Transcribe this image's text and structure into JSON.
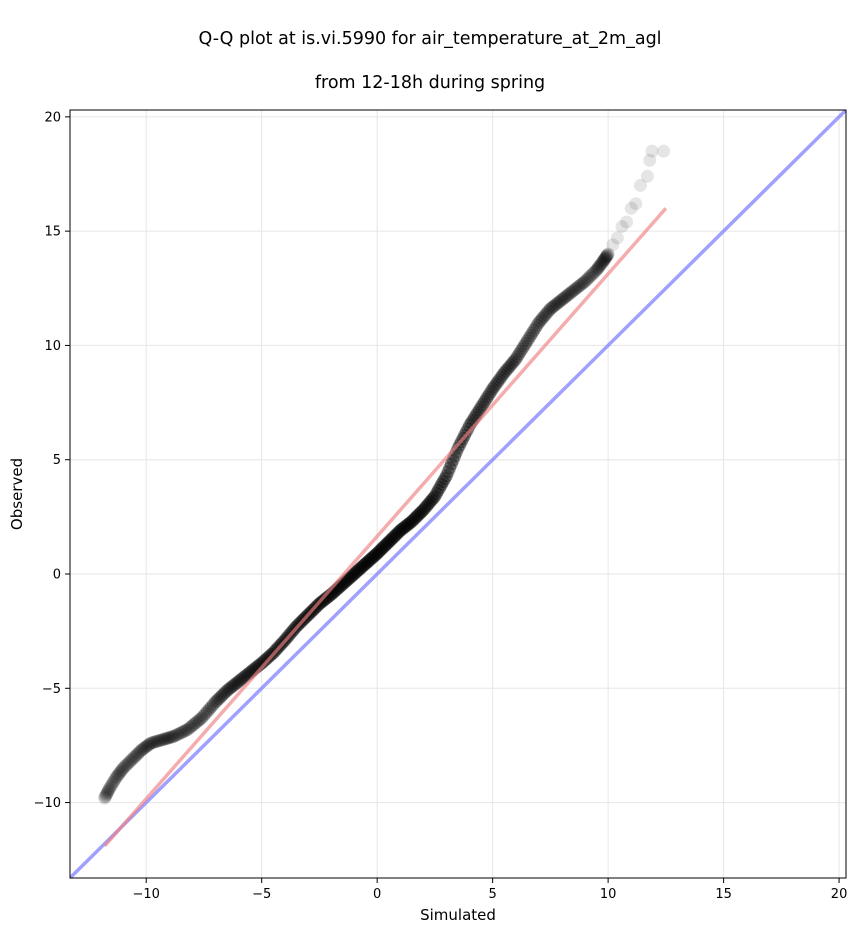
{
  "title_line1": "Q-Q plot at is.vi.5990 for air_temperature_at_2m_agl",
  "title_line2": "from 12-18h during spring",
  "chart_data": {
    "type": "scatter",
    "title": "Q-Q plot at is.vi.5990 for air_temperature_at_2m_agl\nfrom 12-18h during spring",
    "xlabel": "Simulated",
    "ylabel": "Observed",
    "xlim": [
      -13.3,
      20.3
    ],
    "ylim": [
      -13.3,
      20.3
    ],
    "xticks": [
      -10,
      -5,
      0,
      5,
      10,
      15,
      20
    ],
    "yticks": [
      -10,
      -5,
      0,
      5,
      10,
      15,
      20
    ],
    "xtick_labels": [
      "−10",
      "−5",
      "0",
      "5",
      "10",
      "15",
      "20"
    ],
    "ytick_labels": [
      "−10",
      "−5",
      "0",
      "5",
      "10",
      "15",
      "20"
    ],
    "grid": true,
    "colors": {
      "points": "#000000",
      "fit_line": "#f08080",
      "identity_line": "#8080ff",
      "grid": "#e6e6e6"
    },
    "quantile_curve": [
      {
        "x": -11.8,
        "y": -9.8
      },
      {
        "x": -11.6,
        "y": -9.4
      },
      {
        "x": -11.3,
        "y": -8.9
      },
      {
        "x": -11.0,
        "y": -8.5
      },
      {
        "x": -10.6,
        "y": -8.1
      },
      {
        "x": -10.2,
        "y": -7.7
      },
      {
        "x": -9.8,
        "y": -7.4
      },
      {
        "x": -9.3,
        "y": -7.25
      },
      {
        "x": -8.8,
        "y": -7.1
      },
      {
        "x": -8.2,
        "y": -6.8
      },
      {
        "x": -7.6,
        "y": -6.3
      },
      {
        "x": -7.0,
        "y": -5.6
      },
      {
        "x": -6.5,
        "y": -5.1
      },
      {
        "x": -6.0,
        "y": -4.7
      },
      {
        "x": -5.5,
        "y": -4.3
      },
      {
        "x": -5.0,
        "y": -3.9
      },
      {
        "x": -4.5,
        "y": -3.45
      },
      {
        "x": -4.0,
        "y": -2.9
      },
      {
        "x": -3.5,
        "y": -2.3
      },
      {
        "x": -3.0,
        "y": -1.8
      },
      {
        "x": -2.5,
        "y": -1.3
      },
      {
        "x": -2.0,
        "y": -0.9
      },
      {
        "x": -1.5,
        "y": -0.45
      },
      {
        "x": -1.0,
        "y": 0.0
      },
      {
        "x": -0.5,
        "y": 0.45
      },
      {
        "x": 0.0,
        "y": 0.9
      },
      {
        "x": 0.5,
        "y": 1.4
      },
      {
        "x": 1.0,
        "y": 1.9
      },
      {
        "x": 1.5,
        "y": 2.3
      },
      {
        "x": 2.0,
        "y": 2.8
      },
      {
        "x": 2.5,
        "y": 3.4
      },
      {
        "x": 3.0,
        "y": 4.3
      },
      {
        "x": 3.5,
        "y": 5.5
      },
      {
        "x": 4.0,
        "y": 6.5
      },
      {
        "x": 4.5,
        "y": 7.3
      },
      {
        "x": 5.0,
        "y": 8.1
      },
      {
        "x": 5.5,
        "y": 8.8
      },
      {
        "x": 6.0,
        "y": 9.4
      },
      {
        "x": 6.5,
        "y": 10.2
      },
      {
        "x": 7.0,
        "y": 11.0
      },
      {
        "x": 7.5,
        "y": 11.6
      },
      {
        "x": 8.0,
        "y": 12.0
      },
      {
        "x": 8.5,
        "y": 12.4
      },
      {
        "x": 9.0,
        "y": 12.8
      },
      {
        "x": 9.5,
        "y": 13.3
      },
      {
        "x": 9.8,
        "y": 13.7
      },
      {
        "x": 10.0,
        "y": 14.0
      }
    ],
    "tail_points": [
      {
        "x": 10.2,
        "y": 14.4
      },
      {
        "x": 10.4,
        "y": 14.7
      },
      {
        "x": 10.6,
        "y": 15.2
      },
      {
        "x": 10.8,
        "y": 15.4
      },
      {
        "x": 11.0,
        "y": 16.0
      },
      {
        "x": 11.2,
        "y": 16.2
      },
      {
        "x": 11.4,
        "y": 17.0
      },
      {
        "x": 11.7,
        "y": 17.4
      },
      {
        "x": 11.8,
        "y": 18.1
      },
      {
        "x": 11.9,
        "y": 18.5
      },
      {
        "x": 12.4,
        "y": 18.5
      }
    ],
    "fit_line": {
      "x": [
        -11.8,
        12.5
      ],
      "y": [
        -11.9,
        16.0
      ]
    },
    "identity_line": {
      "x": [
        -13.3,
        20.3
      ],
      "y": [
        -13.3,
        20.3
      ]
    }
  }
}
